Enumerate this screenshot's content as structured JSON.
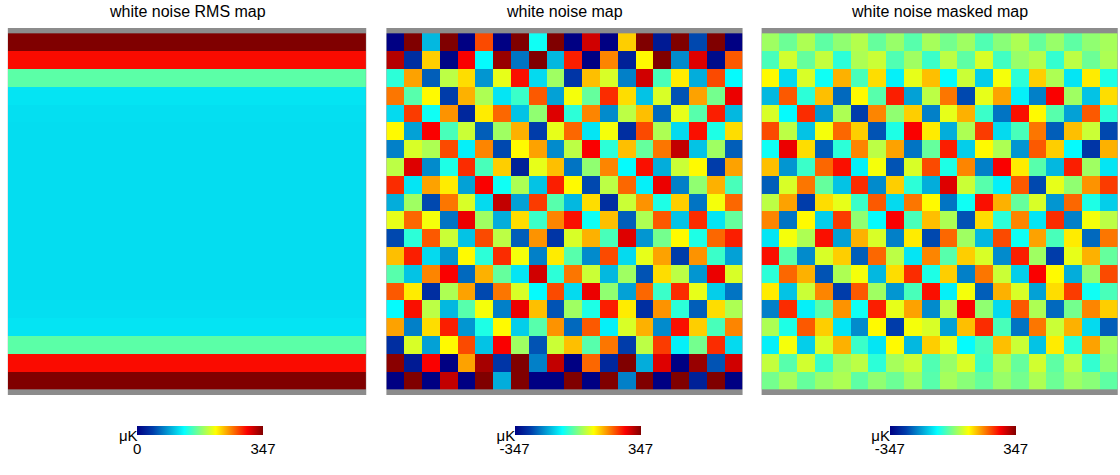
{
  "chart_data": [
    {
      "type": "heatmap",
      "title": "white noise RMS map",
      "tick_labels": false,
      "zlim": [
        0,
        347
      ],
      "colorbar_ticks": [
        0,
        347
      ],
      "colorbar_label": "μK",
      "z": [
        [
          420,
          420,
          420,
          420,
          420,
          420,
          420,
          420,
          420,
          420
        ],
        [
          300,
          300,
          300,
          300,
          300,
          300,
          300,
          300,
          300,
          300
        ],
        [
          160,
          160,
          160,
          160,
          160,
          160,
          160,
          160,
          160,
          160
        ],
        [
          118,
          118,
          118,
          118,
          118,
          118,
          118,
          118,
          118,
          118
        ],
        [
          116,
          116,
          116,
          116,
          116,
          116,
          116,
          116,
          116,
          116
        ],
        [
          115,
          115,
          115,
          115,
          115,
          115,
          115,
          115,
          115,
          115
        ],
        [
          115,
          115,
          115,
          115,
          115,
          115,
          115,
          115,
          115,
          115
        ],
        [
          115,
          115,
          115,
          115,
          115,
          115,
          115,
          115,
          115,
          115
        ],
        [
          115,
          115,
          115,
          115,
          115,
          115,
          115,
          115,
          115,
          115
        ],
        [
          115,
          115,
          115,
          115,
          115,
          115,
          115,
          115,
          115,
          115
        ],
        [
          115,
          115,
          115,
          115,
          115,
          115,
          115,
          115,
          115,
          115
        ],
        [
          115,
          115,
          115,
          115,
          115,
          115,
          115,
          115,
          115,
          115
        ],
        [
          115,
          115,
          115,
          115,
          115,
          115,
          115,
          115,
          115,
          115
        ],
        [
          115,
          115,
          115,
          115,
          115,
          115,
          115,
          115,
          115,
          115
        ],
        [
          115,
          115,
          115,
          115,
          115,
          115,
          115,
          115,
          115,
          115
        ],
        [
          116,
          116,
          116,
          116,
          116,
          116,
          116,
          116,
          116,
          116
        ],
        [
          118,
          118,
          118,
          118,
          118,
          118,
          118,
          118,
          118,
          118
        ],
        [
          160,
          160,
          160,
          160,
          160,
          160,
          160,
          160,
          160,
          160
        ],
        [
          300,
          300,
          300,
          300,
          300,
          300,
          300,
          300,
          300,
          300
        ],
        [
          420,
          420,
          420,
          420,
          420,
          420,
          420,
          420,
          420,
          420
        ]
      ]
    },
    {
      "type": "heatmap",
      "title": "white noise map",
      "tick_labels": false,
      "zlim": [
        -347,
        347
      ],
      "colorbar_ticks": [
        -347,
        347
      ],
      "colorbar_label": "μK",
      "z": [
        [
          -420,
          380,
          -150,
          460,
          -390,
          210,
          -470,
          350,
          -80,
          410,
          -360,
          290,
          -440,
          120,
          400,
          -310,
          480,
          -250,
          370,
          -400
        ],
        [
          310,
          -280,
          120,
          -340,
          260,
          -90,
          330,
          -210,
          380,
          -150,
          240,
          -360,
          170,
          -300,
          90,
          350,
          -190,
          280,
          -330,
          200
        ],
        [
          -60,
          150,
          -230,
          40,
          110,
          -180,
          70,
          250,
          -120,
          20,
          -270,
          130,
          60,
          -200,
          290,
          -40,
          100,
          -160,
          210,
          -90
        ],
        [
          180,
          -30,
          90,
          -260,
          140,
          30,
          -110,
          -50,
          200,
          -170,
          80,
          -20,
          230,
          110,
          -140,
          60,
          -240,
          150,
          -10,
          270
        ],
        [
          -120,
          220,
          -80,
          160,
          -290,
          100,
          190,
          -140,
          10,
          280,
          -60,
          170,
          -190,
          40,
          130,
          -220,
          70,
          -30,
          240,
          -150
        ],
        [
          90,
          -170,
          260,
          -40,
          50,
          -230,
          20,
          140,
          -260,
          70,
          190,
          -110,
          80,
          -280,
          210,
          30,
          -120,
          250,
          -70,
          110
        ],
        [
          -200,
          60,
          30,
          210,
          -100,
          170,
          -250,
          90,
          150,
          -190,
          40,
          260,
          -60,
          130,
          -20,
          180,
          300,
          -140,
          20,
          -230
        ],
        [
          40,
          280,
          -190,
          -70,
          230,
          -40,
          120,
          -300,
          70,
          130,
          -210,
          10,
          170,
          -90,
          250,
          -160,
          50,
          90,
          -260,
          150
        ],
        [
          230,
          -110,
          150,
          100,
          -170,
          260,
          -80,
          30,
          -140,
          240,
          90,
          -250,
          40,
          190,
          -100,
          270,
          -200,
          10,
          140,
          -40
        ],
        [
          -160,
          20,
          -250,
          180,
          60,
          -120,
          300,
          -170,
          220,
          -30,
          -150,
          110,
          -280,
          50,
          160,
          -70,
          120,
          -210,
          80,
          190
        ],
        [
          70,
          190,
          80,
          -210,
          270,
          20,
          -160,
          110,
          -50,
          170,
          250,
          -80,
          130,
          -230,
          30,
          200,
          -140,
          230,
          -110,
          -20
        ],
        [
          -250,
          -60,
          200,
          50,
          -140,
          210,
          40,
          -230,
          160,
          -270,
          60,
          140,
          -40,
          280,
          -180,
          -10,
          90,
          -70,
          190,
          240
        ],
        [
          130,
          240,
          -120,
          -180,
          90,
          -60,
          230,
          80,
          -200,
          100,
          -30,
          -190,
          210,
          -120,
          70,
          150,
          -260,
          160,
          -50,
          -170
        ],
        [
          -30,
          -140,
          170,
          260,
          -220,
          140,
          -20,
          -110,
          290,
          -60,
          180,
          50,
          -150,
          20,
          -240,
          110,
          40,
          -180,
          270,
          60
        ],
        [
          200,
          100,
          -280,
          30,
          150,
          -250,
          180,
          60,
          -90,
          210,
          -120,
          270,
          10,
          -170,
          190,
          -50,
          230,
          70,
          -130,
          -210
        ],
        [
          -90,
          250,
          40,
          -150,
          -30,
          80,
          -200,
          270,
          130,
          -240,
          20,
          -70,
          240,
          100,
          -280,
          160,
          -60,
          -230,
          110,
          30
        ],
        [
          150,
          -200,
          110,
          240,
          -180,
          -70,
          90,
          -130,
          -30,
          160,
          -220,
          200,
          -100,
          60,
          140,
          -190,
          250,
          120,
          -40,
          170
        ],
        [
          -280,
          60,
          -170,
          90,
          210,
          -140,
          260,
          20,
          -240,
          50,
          130,
          -30,
          180,
          -260,
          40,
          220,
          -100,
          -10,
          230,
          -120
        ],
        [
          340,
          -310,
          260,
          -380,
          150,
          320,
          -270,
          390,
          -200,
          300,
          -350,
          190,
          -290,
          370,
          -160,
          280,
          -400,
          330,
          -240,
          290
        ],
        [
          -460,
          410,
          -390,
          300,
          -480,
          440,
          -160,
          420,
          -440,
          -350,
          470,
          -420,
          380,
          -200,
          450,
          -470,
          390,
          -300,
          440,
          -380
        ]
      ]
    },
    {
      "type": "heatmap",
      "title": "white noise masked map",
      "tick_labels": false,
      "zlim": [
        -347,
        347
      ],
      "colorbar_ticks": [
        -347,
        347
      ],
      "colorbar_label": "μK",
      "z": [
        [
          20,
          -15,
          30,
          -25,
          10,
          35,
          -20,
          15,
          -30,
          25,
          -10,
          20,
          -35,
          5,
          30,
          -20,
          15,
          -25,
          10,
          25
        ],
        [
          -40,
          55,
          -20,
          45,
          -60,
          30,
          50,
          -35,
          20,
          -50,
          40,
          -25,
          60,
          -45,
          15,
          35,
          -55,
          40,
          -15,
          30
        ],
        [
          90,
          -120,
          60,
          -80,
          140,
          -40,
          110,
          -100,
          70,
          130,
          -90,
          50,
          -130,
          80,
          -60,
          120,
          30,
          -110,
          100,
          -70
        ],
        [
          -150,
          200,
          -60,
          130,
          -220,
          90,
          -30,
          240,
          -170,
          40,
          180,
          -250,
          70,
          150,
          -100,
          -200,
          260,
          20,
          -140,
          110
        ],
        [
          60,
          -90,
          230,
          -180,
          30,
          -260,
          170,
          10,
          120,
          -200,
          70,
          140,
          -50,
          -210,
          250,
          90,
          -30,
          -170,
          200,
          -60
        ],
        [
          210,
          40,
          -140,
          80,
          190,
          120,
          -240,
          -70,
          260,
          100,
          -160,
          30,
          220,
          -120,
          -40,
          180,
          -230,
          130,
          50,
          -250
        ],
        [
          -80,
          270,
          110,
          -230,
          -60,
          170,
          40,
          150,
          -210,
          -20,
          240,
          -130,
          90,
          30,
          -180,
          200,
          120,
          -90,
          -270,
          140
        ],
        [
          130,
          -180,
          -50,
          190,
          250,
          -100,
          80,
          -240,
          60,
          210,
          -70,
          170,
          -200,
          260,
          100,
          -30,
          -150,
          240,
          20,
          -110
        ],
        [
          -230,
          60,
          180,
          -20,
          -140,
          230,
          -190,
          120,
          -60,
          -160,
          280,
          50,
          -30,
          -100,
          200,
          -250,
          70,
          10,
          160,
          220
        ],
        [
          40,
          150,
          -260,
          110,
          70,
          -50,
          200,
          -120,
          180,
          90,
          -210,
          -80,
          250,
          140,
          -20,
          60,
          -180,
          190,
          -70,
          -130
        ],
        [
          170,
          -210,
          90,
          -130,
          220,
          10,
          -90,
          260,
          -40,
          130,
          30,
          -240,
          110,
          -60,
          170,
          -110,
          230,
          -200,
          80,
          40
        ],
        [
          -110,
          80,
          30,
          250,
          -170,
          140,
          60,
          -200,
          100,
          -250,
          190,
          20,
          -150,
          210,
          -80,
          150,
          -40,
          100,
          -220,
          180
        ],
        [
          250,
          -30,
          -190,
          60,
          120,
          -230,
          190,
          40,
          -110,
          170,
          -30,
          120,
          60,
          -190,
          240,
          20,
          -260,
          70,
          140,
          -20
        ],
        [
          -60,
          190,
          140,
          -240,
          30,
          80,
          -150,
          110,
          230,
          -70,
          120,
          -200,
          180,
          50,
          -130,
          260,
          90,
          -160,
          10,
          210
        ],
        [
          100,
          -140,
          50,
          170,
          -260,
          200,
          20,
          -180,
          -40,
          250,
          -100,
          80,
          -230,
          140,
          60,
          -170,
          110,
          220,
          -80,
          -40
        ],
        [
          -200,
          230,
          -100,
          -30,
          160,
          -80,
          240,
          70,
          150,
          -190,
          40,
          260,
          10,
          -120,
          200,
          30,
          -220,
          -10,
          170,
          120
        ],
        [
          30,
          -70,
          200,
          120,
          -110,
          -190,
          90,
          -260,
          80,
          60,
          -170,
          130,
          230,
          -40,
          -210,
          180,
          50,
          140,
          -120,
          -230
        ],
        [
          -100,
          80,
          -130,
          60,
          140,
          -50,
          -110,
          90,
          -150,
          120,
          70,
          -90,
          -40,
          130,
          50,
          -140,
          100,
          -60,
          150,
          20
        ],
        [
          45,
          -30,
          55,
          -50,
          20,
          40,
          -60,
          25,
          50,
          -35,
          15,
          60,
          -45,
          30,
          -20,
          55,
          -25,
          40,
          -55,
          10
        ],
        [
          -10,
          25,
          -20,
          15,
          30,
          -25,
          10,
          -15,
          20,
          -30,
          25,
          5,
          -20,
          15,
          -10,
          30,
          -15,
          20,
          5,
          -25
        ]
      ]
    }
  ]
}
